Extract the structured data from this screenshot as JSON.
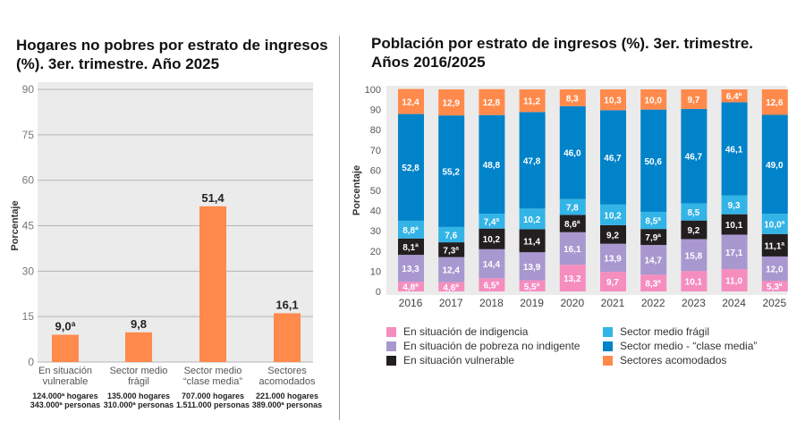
{
  "chart_data": [
    {
      "type": "bar",
      "title": "Hogares no pobres por estrato de ingresos (%). 3er. trimestre. Año 2025",
      "ylabel": "Porcentaje",
      "ylim": [
        0,
        90
      ],
      "yticks": [
        0,
        15,
        30,
        45,
        60,
        75,
        90
      ],
      "categories": [
        "En situación vulnerable",
        "Sector medio frágil",
        "Sector medio “clase media”",
        "Sectores acomodados"
      ],
      "category_lines": [
        [
          "En situación",
          "vulnerable"
        ],
        [
          "Sector medio",
          "frágil"
        ],
        [
          "Sector medio",
          "“clase media”"
        ],
        [
          "Sectores",
          "acomodados"
        ]
      ],
      "values": [
        9.0,
        9.8,
        51.4,
        16.1
      ],
      "data_labels": [
        "9,0ª",
        "9,8",
        "51,4",
        "16,1"
      ],
      "notes": [
        [
          "124.000ª hogares",
          "343.000ª personas"
        ],
        [
          "135.000 hogares",
          "310.000ª personas"
        ],
        [
          "707.000 hogares",
          "1.511.000 personas"
        ],
        [
          "221.000 hogares",
          "389.000ª personas"
        ]
      ],
      "color": "#ff8a4c"
    },
    {
      "type": "bar",
      "stacked": true,
      "title": "Población por estrato de ingresos (%). 3er. trimestre. Años 2016/2025",
      "ylabel": "Porcentaje",
      "ylim": [
        0,
        100
      ],
      "yticks": [
        0,
        10,
        20,
        30,
        40,
        50,
        60,
        70,
        80,
        90,
        100
      ],
      "categories": [
        "2016",
        "2017",
        "2018",
        "2019",
        "2020",
        "2021",
        "2022",
        "2023",
        "2024",
        "2025"
      ],
      "series": [
        {
          "name": "En situación de indigencia",
          "color": "#f58dbf",
          "text": "#fff",
          "values": [
            4.8,
            4.6,
            6.5,
            5.5,
            13.2,
            9.7,
            8.3,
            10.1,
            11.0,
            5.3
          ],
          "labels": [
            "4,8ª",
            "4,6ª",
            "6,5ª",
            "5,5ª",
            "13,2",
            "9,7",
            "8,3ª",
            "10,1",
            "11,0",
            "5,3ª"
          ]
        },
        {
          "name": "En situación de pobreza no indigente",
          "color": "#a898cf",
          "text": "#fff",
          "values": [
            13.3,
            12.4,
            14.4,
            13.9,
            16.1,
            13.9,
            14.7,
            15.8,
            17.1,
            12.0
          ],
          "labels": [
            "13,3",
            "12,4",
            "14,4",
            "13,9",
            "16,1",
            "13,9",
            "14,7",
            "15,8",
            "17,1",
            "12,0"
          ]
        },
        {
          "name": "En situación vulnerable",
          "color": "#231f20",
          "text": "#fff",
          "values": [
            8.1,
            7.3,
            10.2,
            11.4,
            8.6,
            9.2,
            7.9,
            9.2,
            10.1,
            11.1
          ],
          "labels": [
            "8,1ª",
            "7,3ª",
            "10,2",
            "11,4",
            "8,6ª",
            "9,2",
            "7,9ª",
            "9,2",
            "10,1",
            "11,1ª"
          ]
        },
        {
          "name": "Sector medio frágil",
          "color": "#33b4e6",
          "text": "#fff",
          "values": [
            8.8,
            7.6,
            7.4,
            10.2,
            7.8,
            10.2,
            8.5,
            8.5,
            9.3,
            10.0
          ],
          "labels": [
            "8,8ª",
            "7,6",
            "7,4ª",
            "10,2",
            "7,8",
            "10,2",
            "8,5ª",
            "8,5",
            "9,3",
            "10,0ª"
          ]
        },
        {
          "name": "Sector medio - “clase media”",
          "color": "#0083c9",
          "text": "#fff",
          "values": [
            52.8,
            55.2,
            48.8,
            47.8,
            46.0,
            46.7,
            50.6,
            46.7,
            46.1,
            49.0
          ],
          "labels": [
            "52,8",
            "55,2",
            "48,8",
            "47,8",
            "46,0",
            "46,7",
            "50,6",
            "46,7",
            "46,1",
            "49,0"
          ]
        },
        {
          "name": "Sectores acomodados",
          "color": "#ff8a4c",
          "text": "#fff",
          "values": [
            12.4,
            12.9,
            12.8,
            11.2,
            8.3,
            10.3,
            10.0,
            9.7,
            6.4,
            12.6
          ],
          "labels": [
            "12,4",
            "12,9",
            "12,8",
            "11,2",
            "8,3",
            "10,3",
            "10,0",
            "9,7",
            "6,4ª",
            "12,6"
          ]
        }
      ],
      "legend_position": "bottom"
    }
  ]
}
